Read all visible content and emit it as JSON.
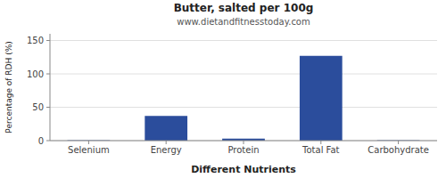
{
  "chart_data": {
    "type": "bar",
    "title": "Butter, salted per 100g",
    "subtitle": "www.dietandfitnesstoday.com",
    "xlabel": "Different Nutrients",
    "ylabel": "Percentage of RDH (%)",
    "categories": [
      "Selenium",
      "Energy",
      "Protein",
      "Total Fat",
      "Carbohydrate"
    ],
    "values": [
      0.5,
      37,
      3,
      127,
      0.5
    ],
    "color": "#2b4d9c",
    "ylim": [
      0,
      160
    ],
    "yticks": [
      0,
      50,
      100,
      150
    ],
    "grid": true
  }
}
